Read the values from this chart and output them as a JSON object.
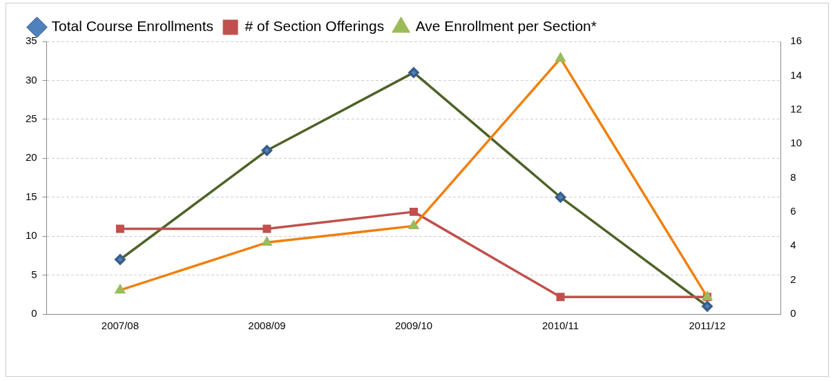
{
  "chart_data": {
    "type": "line",
    "categories": [
      "2007/08",
      "2008/09",
      "2009/10",
      "2010/11",
      "2011/12"
    ],
    "series": [
      {
        "name": "Total Course Enrollments",
        "color": "#4f6228",
        "values": [
          7,
          21,
          31,
          15,
          1
        ],
        "marker": "diamond"
      },
      {
        "name": "# of Section Offerings",
        "color": "#c0504d",
        "values": [
          5,
          5,
          6,
          1,
          1
        ],
        "axis": "y2",
        "marker": "square"
      },
      {
        "name": "Ave Enrollment per Section*",
        "color": "#f07f09",
        "values": [
          1.4,
          4.2,
          5.17,
          15,
          1
        ],
        "axis": "y2",
        "marker": "triangle"
      }
    ],
    "ylim": [
      0,
      35
    ],
    "yticks": [
      0,
      5,
      10,
      15,
      20,
      25,
      30,
      35
    ],
    "y2lim": [
      0,
      16
    ],
    "y2ticks": [
      0,
      2,
      4,
      6,
      8,
      10,
      12,
      14,
      16
    ],
    "grid": "y",
    "legend": "top",
    "line_style": "solid"
  }
}
